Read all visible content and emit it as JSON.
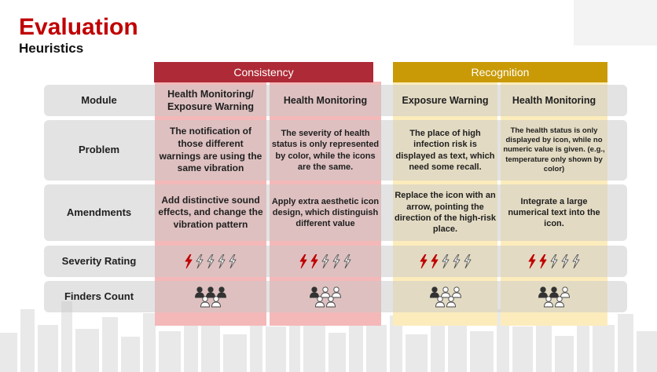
{
  "header": {
    "title": "Evaluation",
    "subtitle": "Heuristics"
  },
  "groups": {
    "consistency": "Consistency",
    "recognition": "Recognition"
  },
  "rows": {
    "module": "Module",
    "problem": "Problem",
    "amendments": "Amendments",
    "severity": "Severity Rating",
    "finders": "Finders Count"
  },
  "columns": [
    {
      "group": "consistency",
      "module": "Health Monitoring/ Exposure Warning",
      "problem": "The notification of those different warnings are using the same vibration",
      "amendments": "Add distinctive sound effects, and change the vibration pattern",
      "severity": 1,
      "finders": 3
    },
    {
      "group": "consistency",
      "module": "Health Monitoring",
      "problem": "The severity of health status is only represented by color, while the icons are the same.",
      "amendments": "Apply extra aesthetic icon design, which distinguish different value",
      "severity": 2,
      "finders": 1
    },
    {
      "group": "recognition",
      "module": "Exposure Warning",
      "problem": "The place of high infection risk is displayed as text, which need some recall.",
      "amendments": "Replace the icon with an arrow, pointing the direction of the high-risk place.",
      "severity": 2,
      "finders": 1
    },
    {
      "group": "recognition",
      "module": "Health Monitoring",
      "problem": "The health status is only displayed by icon, while no numeric value is given. (e.g., temperature only shown by color)",
      "amendments": "Integrate a large numerical text into the icon.",
      "severity": 2,
      "finders": 2
    }
  ],
  "severity_max": 5,
  "finders_max": 3,
  "colors": {
    "title_red": "#c00000",
    "consistency_header": "#ad2a36",
    "consistency_bg": "#f4b8b8",
    "recognition_header": "#c99a06",
    "recognition_bg": "#fcecbc",
    "bolt_filled": "#c00000",
    "person_filled": "#333333"
  },
  "icons": {
    "severity": "lightning-bolt-icon",
    "finders": "person-icon"
  }
}
